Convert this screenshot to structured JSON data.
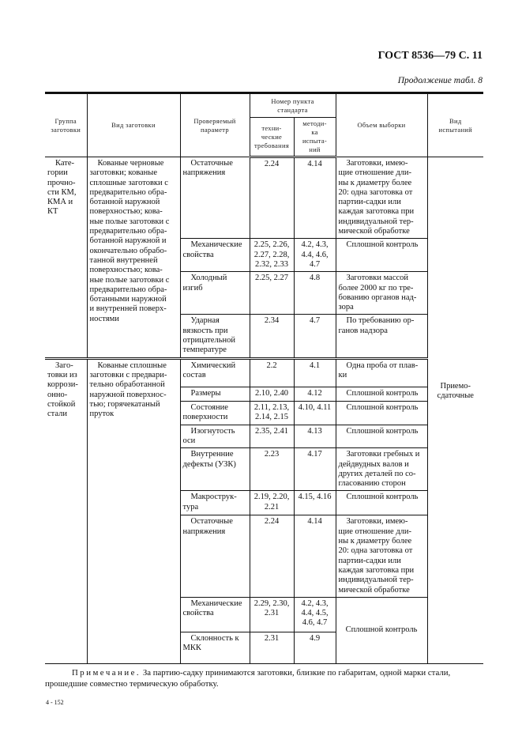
{
  "page_header": "ГОСТ 8536—79 С. 11",
  "continuation": "Продолжение табл. 8",
  "table": {
    "headers": {
      "group": "Группа\nзаготовки",
      "kind": "Вид заготовки",
      "param": "Проверяемый\nпараметр",
      "clause": "Номер пункта\nстандарта",
      "tech": "техни-\nческие\nтребования",
      "method": "методи-\nка\nиспыта-\nний",
      "sample": "Объем выборки",
      "test": "Вид\nиспытаний"
    },
    "test_type": "Приемо-\nсдаточные",
    "groups": [
      {
        "group": "Кате-\nгории\nпрочно-\nсти КМ,\nКМА и\nКТ",
        "kind": "Кованые черновые\nзаготовки; кованые\nсплошные заготовки с\nпредварительно обра-\nботанной наружной\nповерхностью; кова-\nные полые заготовки с\nпредварительно обра-\nботанной наружной и\nокончательно обрабо-\nтанной внутренней\nповерхностью; кова-\nные полые заготовки с\nпредварительно обра-\nботанными наружной\nи внутренней поверх-\nностями",
        "rows": [
          {
            "param": "Остаточные\nнапряжения",
            "tech": "2.24",
            "method": "4.14",
            "sample": "Заготовки, имею-\nщие отношение дли-\nны к диаметру более\n20: одна заготовка от\nпартии-садки или\nкаждая заготовка при\nиндивидуальной тер-\nмической обработке"
          },
          {
            "param": "Механические\nсвойства",
            "tech": "2.25, 2.26,\n2.27, 2.28,\n2.32, 2.33",
            "method": "4.2, 4.3,\n4.4, 4.6,\n4.7",
            "sample": "Сплошной контроль"
          },
          {
            "param": "Холодный\nизгиб",
            "tech": "2.25, 2.27",
            "method": "4.8",
            "sample": "Заготовки массой\nболее 2000 кг по тре-\nбованию органов над-\nзора"
          },
          {
            "param": "Ударная\nвязкость при\nотрицательной\nтемпературе",
            "tech": "2.34",
            "method": "4.7",
            "sample": "По требованию ор-\nганов надзора"
          }
        ]
      },
      {
        "group": "Заго-\nтовки из\nкоррози-\nонно-\nстойкой\nстали",
        "kind": "Кованые сплошные\nзаготовки с предвари-\nтельно обработанной\nнаружной поверхнос-\nтью; горячекатаный\nпруток",
        "rows": [
          {
            "param": "Химический\nсостав",
            "tech": "2.2",
            "method": "4.1",
            "sample": "Одна проба от плав-\nки"
          },
          {
            "param": "Размеры",
            "tech": "2.10, 2.40",
            "method": "4.12",
            "sample": "Сплошной контроль"
          },
          {
            "param": "Состояние\nповерхности",
            "tech": "2.11, 2.13,\n2.14, 2.15",
            "method": "4.10, 4.11",
            "sample": "Сплошной контроль"
          },
          {
            "param": "Изогнутость\nоси",
            "tech": "2.35, 2.41",
            "method": "4.13",
            "sample": "Сплошной контроль"
          },
          {
            "param": "Внутренние\nдефекты (УЗК)",
            "tech": "2.23",
            "method": "4.17",
            "sample": "Заготовки гребных и\nдейдвудных валов и\nдругих деталей по со-\nгласованию сторон"
          },
          {
            "param": "Макрострук-\nтура",
            "tech": "2.19, 2.20,\n2.21",
            "method": "4.15, 4.16",
            "sample": "Сплошной контроль"
          },
          {
            "param": "Остаточные\nнапряжения",
            "tech": "2.24",
            "method": "4.14",
            "sample": "Заготовки, имею-\nщие отношение дли-\nны к диаметру более\n20: одна заготовка от\nпартии-садки или\nкаждая заготовка при\nиндивидуальной тер-\nмической обработке"
          },
          {
            "param": "Механические\nсвойства",
            "tech": "2.29, 2.30,\n2.31",
            "method": "4.2, 4.3,\n4.4, 4.5,\n4.6, 4.7",
            "sample": "Сплошной контроль"
          },
          {
            "param": "Склонность к\nМКК",
            "tech": "2.31",
            "method": "4.9"
          }
        ]
      }
    ]
  },
  "note_label": "Примечание.",
  "note_text": "За партию-садку принимаются заготовки, близкие по габаритам, одной марки стали, прошедшие совместно термическую обработку.",
  "footer_code": "4 - 152"
}
